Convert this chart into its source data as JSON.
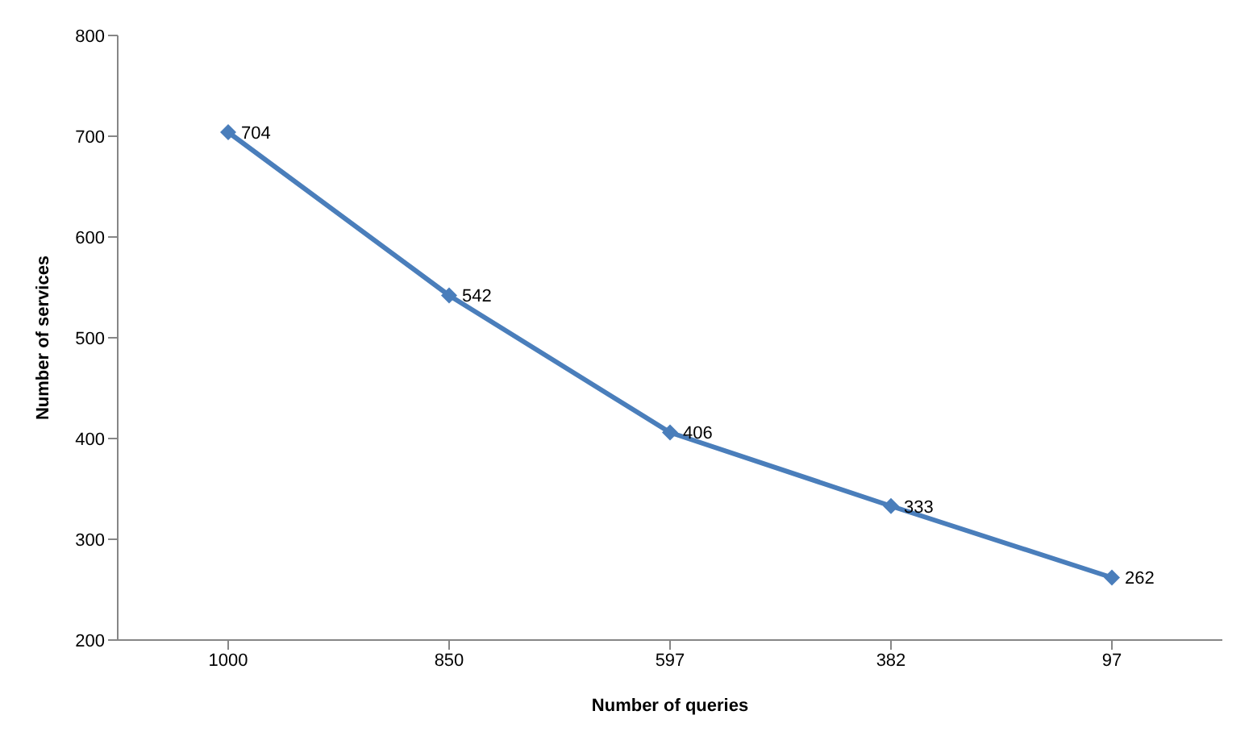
{
  "chart_data": {
    "type": "line",
    "xlabel": "Number of queries",
    "ylabel": "Number of services",
    "categories": [
      "1000",
      "850",
      "597",
      "382",
      "97"
    ],
    "series": [
      {
        "color": "#4a7ebb",
        "values": [
          704,
          542,
          406,
          333,
          262
        ]
      }
    ],
    "ylim": [
      200,
      800
    ],
    "yticks": [
      200,
      300,
      400,
      500,
      600,
      700,
      800
    ],
    "grid": false,
    "legend": false,
    "marker": "diamond",
    "line_style": "solid",
    "data_labels": true
  }
}
